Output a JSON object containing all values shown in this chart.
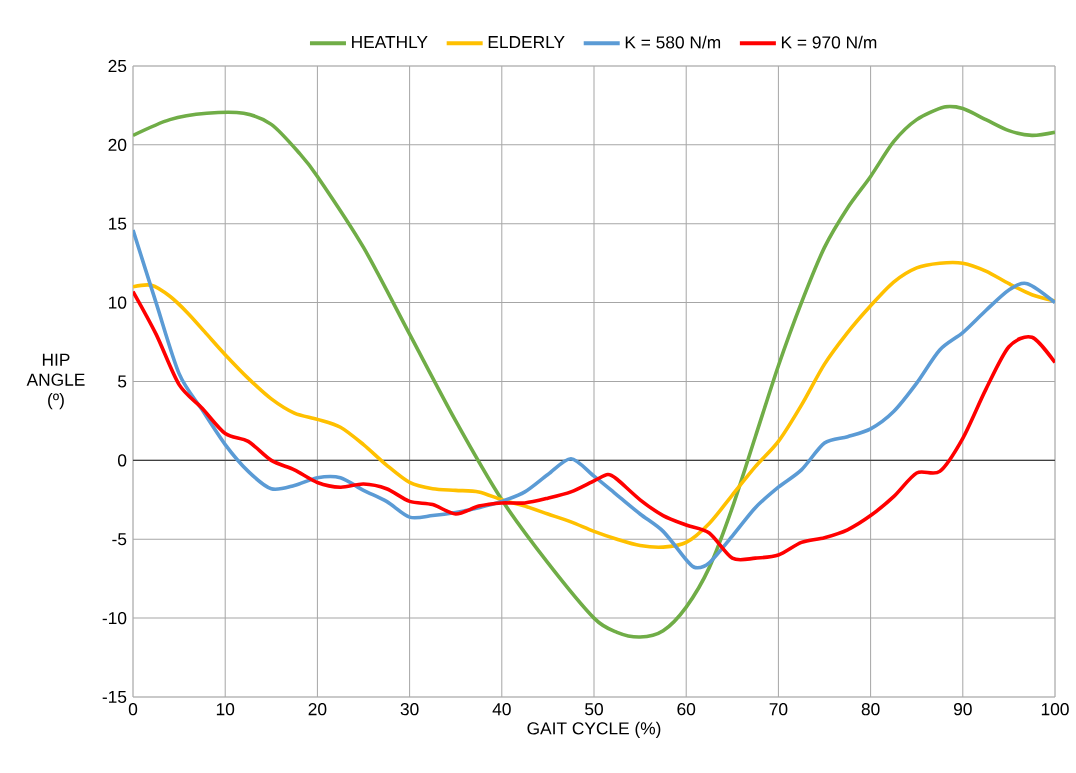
{
  "chart_data": {
    "type": "line",
    "xlabel": "GAIT  CYCLE (%)",
    "ylabel": "HIP ANGLE (º)",
    "xlim": [
      0,
      100
    ],
    "ylim": [
      -15,
      25
    ],
    "xticks": [
      0,
      10,
      20,
      30,
      40,
      50,
      60,
      70,
      80,
      90,
      100
    ],
    "yticks": [
      -15,
      -10,
      -5,
      0,
      5,
      10,
      15,
      20,
      25
    ],
    "grid": true,
    "legend": "top",
    "marker": "none",
    "line_style": "solid",
    "ref_lines": [
      {
        "axis": "y",
        "value": 0,
        "color": "#404040"
      }
    ],
    "series": [
      {
        "name": "HEATHLY",
        "color": "#70ad47",
        "x": [
          0,
          4,
          8,
          12,
          15,
          18,
          20,
          25,
          30,
          35,
          40,
          45,
          50,
          52.5,
          55,
          57.5,
          60,
          62.5,
          65,
          67.5,
          70,
          72.5,
          75,
          77.5,
          80,
          82.5,
          85,
          88,
          90,
          92.5,
          95,
          97.5,
          100
        ],
        "values": [
          20.6,
          21.6,
          22,
          22,
          21.3,
          19.5,
          18,
          13.5,
          8,
          2.5,
          -2.5,
          -6.5,
          -10,
          -10.9,
          -11.2,
          -10.8,
          -9.3,
          -6.8,
          -3,
          1.5,
          6,
          10,
          13.5,
          16,
          18,
          20.2,
          21.6,
          22.4,
          22.3,
          21.6,
          20.9,
          20.6,
          20.8
        ]
      },
      {
        "name": "ELDERLY",
        "color": "#ffc000",
        "x": [
          0,
          2,
          4,
          6,
          8,
          10,
          12.5,
          15,
          17.5,
          20,
          22.5,
          25,
          27.5,
          30,
          32.5,
          35,
          37.5,
          40,
          42.5,
          45,
          47.5,
          50,
          52.5,
          55,
          57.5,
          60,
          62.5,
          65,
          67.5,
          70,
          72.5,
          75,
          77.5,
          80,
          82.5,
          85,
          87.5,
          90,
          92.5,
          95,
          97.5,
          100
        ],
        "values": [
          11,
          11.1,
          10.4,
          9.3,
          8,
          6.7,
          5.2,
          3.9,
          3,
          2.6,
          2.1,
          1,
          -0.3,
          -1.4,
          -1.8,
          -1.9,
          -2,
          -2.5,
          -2.9,
          -3.4,
          -3.9,
          -4.5,
          -5,
          -5.4,
          -5.5,
          -5.2,
          -4,
          -2.2,
          -0.4,
          1.2,
          3.5,
          6.1,
          8.1,
          9.8,
          11.3,
          12.2,
          12.5,
          12.5,
          12,
          11.2,
          10.5,
          10.1
        ]
      },
      {
        "name": "K = 580 N/m",
        "color": "#5b9bd5",
        "x": [
          0,
          2.5,
          5,
          7.5,
          10,
          12.5,
          15,
          17.5,
          20,
          22.5,
          25,
          27.5,
          30,
          32.5,
          35,
          37.5,
          40,
          42.5,
          45,
          47.5,
          50,
          52.5,
          55,
          57.5,
          60,
          61,
          62.5,
          65,
          67.5,
          70,
          72.5,
          75,
          77.5,
          80,
          82.5,
          85,
          87.5,
          90,
          92.5,
          95,
          97,
          100
        ],
        "values": [
          14.6,
          10,
          5.5,
          3.2,
          1,
          -0.7,
          -1.8,
          -1.6,
          -1.1,
          -1.1,
          -1.9,
          -2.6,
          -3.6,
          -3.5,
          -3.3,
          -3,
          -2.6,
          -2,
          -0.9,
          0.1,
          -1,
          -2.2,
          -3.4,
          -4.5,
          -6.3,
          -6.8,
          -6.5,
          -4.8,
          -3,
          -1.7,
          -0.6,
          1.1,
          1.5,
          2,
          3.1,
          4.9,
          7,
          8.1,
          9.5,
          10.8,
          11.2,
          10
        ]
      },
      {
        "name": "K = 970 N/m",
        "color": "#ff0000",
        "x": [
          0,
          2.5,
          5,
          7.5,
          10,
          12.5,
          15,
          17.5,
          20,
          22.5,
          25,
          27.5,
          30,
          32.5,
          35,
          37.5,
          40,
          42.5,
          45,
          47.5,
          50,
          51.5,
          52.5,
          55,
          57.5,
          60,
          62.5,
          65,
          67.5,
          70,
          72.5,
          75,
          77.5,
          80,
          82.5,
          85,
          87.5,
          90,
          92.5,
          95,
          97.5,
          100
        ],
        "values": [
          10.7,
          8,
          4.8,
          3.3,
          1.7,
          1.2,
          0,
          -0.6,
          -1.4,
          -1.7,
          -1.5,
          -1.8,
          -2.6,
          -2.8,
          -3.4,
          -2.9,
          -2.7,
          -2.7,
          -2.4,
          -2,
          -1.3,
          -0.9,
          -1.2,
          -2.5,
          -3.5,
          -4.1,
          -4.6,
          -6.2,
          -6.2,
          -6,
          -5.2,
          -4.9,
          -4.4,
          -3.5,
          -2.3,
          -0.8,
          -0.7,
          1.4,
          4.5,
          7.2,
          7.8,
          6.2
        ]
      }
    ]
  }
}
